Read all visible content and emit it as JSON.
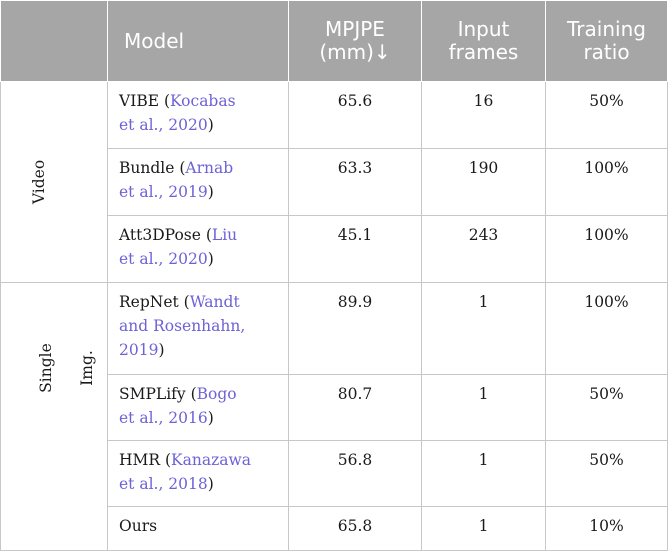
{
  "header": {
    "model": "Model",
    "mpjpe": [
      "MPJPE",
      "(mm)↓"
    ],
    "input_frames": [
      "Input",
      "frames"
    ],
    "training_ratio": [
      "Training",
      "ratio"
    ]
  },
  "groups": {
    "video": "Video",
    "single_img": [
      "Single",
      "Img."
    ]
  },
  "rows": [
    {
      "name": "VIBE",
      "ref": [
        "Kocabas",
        "et al., 2020"
      ],
      "mpjpe": "65.6",
      "frames": "16",
      "ratio": "50%"
    },
    {
      "name": "Bundle",
      "ref": [
        "Arnab",
        "et al., 2019"
      ],
      "mpjpe": "63.3",
      "frames": "190",
      "ratio": "100%"
    },
    {
      "name": "Att3DPose",
      "ref": [
        "Liu",
        "et al., 2020"
      ],
      "mpjpe": "45.1",
      "frames": "243",
      "ratio": "100%"
    },
    {
      "name": "RepNet",
      "ref": [
        "Wandt",
        "and Rosenhahn,",
        "2019"
      ],
      "mpjpe": "89.9",
      "frames": "1",
      "ratio": "100%"
    },
    {
      "name": "SMPLify",
      "ref": [
        "Bogo",
        "et al., 2016"
      ],
      "mpjpe": "80.7",
      "frames": "1",
      "ratio": "50%"
    },
    {
      "name": "HMR",
      "ref": [
        "Kanazawa",
        "et al., 2018"
      ],
      "mpjpe": "56.8",
      "frames": "1",
      "ratio": "50%"
    },
    {
      "name": "Ours",
      "ref": [],
      "mpjpe": "65.8",
      "frames": "1",
      "ratio": "10%"
    }
  ]
}
